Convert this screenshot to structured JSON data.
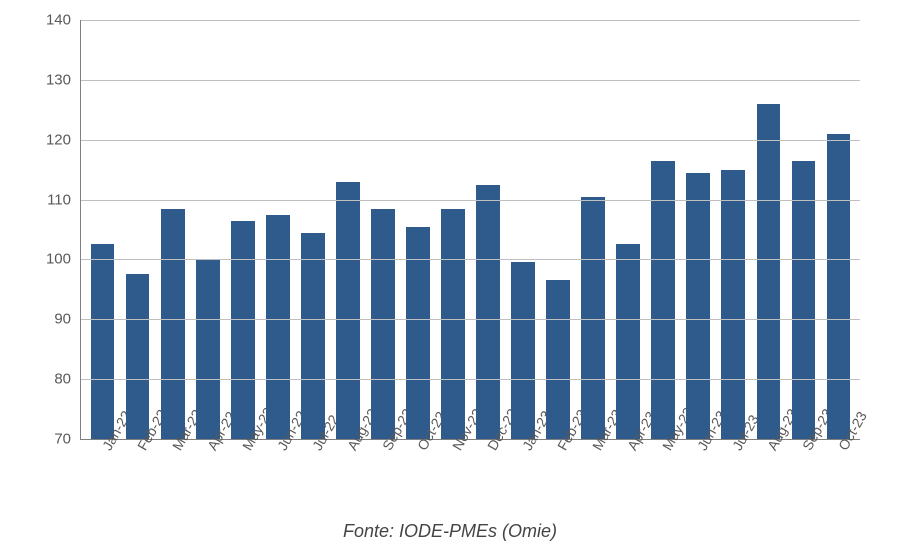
{
  "chart": {
    "type": "bar",
    "background_color": "#ffffff",
    "axis_color": "#7f7f7f",
    "grid_color": "#bfbfbf",
    "tick_label_color": "#595959",
    "tick_fontsize": 15,
    "xtick_fontsize": 14,
    "bar_color": "#2e5a8c",
    "bar_width": 0.68,
    "ylim": [
      70,
      140
    ],
    "ytick_step": 10,
    "yticks": [
      70,
      80,
      90,
      100,
      110,
      120,
      130,
      140
    ],
    "categories": [
      "Jan-22",
      "Feb-22",
      "Mar-22",
      "Apr-22",
      "May-22",
      "Jun-22",
      "Jul-22",
      "Aug-22",
      "Sep-22",
      "Oct-22",
      "Nov-22",
      "Dec-22",
      "Jan-23",
      "Feb-23",
      "Mar-23",
      "Apr-23",
      "May-23",
      "Jun-23",
      "Jul-23",
      "Aug-23",
      "Sep-23",
      "Oct-23"
    ],
    "values": [
      102.5,
      97.5,
      108.5,
      100,
      106.5,
      107.5,
      104.5,
      113,
      108.5,
      105.5,
      108.5,
      112.5,
      99.5,
      96.5,
      110.5,
      102.5,
      116.5,
      114.5,
      115,
      126,
      116.5,
      121
    ]
  },
  "source": {
    "text": "Fonte: IODE-PMEs (Omie)",
    "color": "#444444",
    "fontsize": 18
  }
}
